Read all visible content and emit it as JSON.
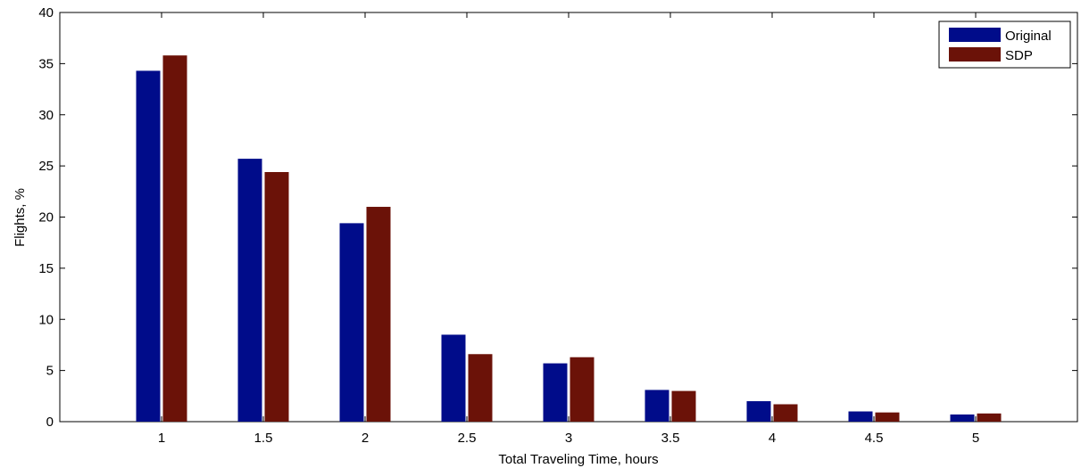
{
  "chart_data": {
    "type": "bar",
    "xlabel": "Total Traveling Time, hours",
    "ylabel": "Flights, %",
    "categories": [
      "1",
      "1.5",
      "2",
      "2.5",
      "3",
      "3.5",
      "4",
      "4.5",
      "5"
    ],
    "series": [
      {
        "name": "Original",
        "color": "#000c8a",
        "values": [
          34.3,
          25.7,
          19.4,
          8.5,
          5.7,
          3.1,
          2.0,
          1.0,
          0.7
        ]
      },
      {
        "name": "SDP",
        "color": "#6b1208",
        "values": [
          35.8,
          24.4,
          21.0,
          6.6,
          6.3,
          3.0,
          1.7,
          0.9,
          0.8
        ]
      }
    ],
    "ylim": [
      0,
      40
    ],
    "yticks": [
      "0",
      "5",
      "10",
      "15",
      "20",
      "25",
      "30",
      "35",
      "40"
    ],
    "legend_position": "top-right",
    "grid": false
  }
}
